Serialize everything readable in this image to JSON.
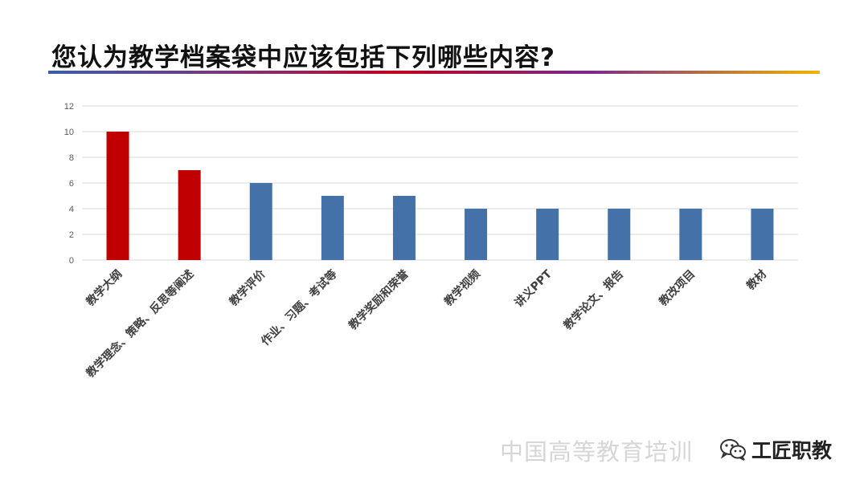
{
  "title": "您认为教学档案袋中应该包括下列哪些内容?",
  "watermark": "中国高等教育培训",
  "brand": {
    "name": "工匠职教",
    "icon": "wechat-icon"
  },
  "colors": {
    "highlight": "#c00000",
    "normal": "#4472a8",
    "grid": "#d9d9d9",
    "axis_text": "#595959",
    "label_text": "#404040"
  },
  "chart_data": {
    "type": "bar",
    "title": "",
    "xlabel": "",
    "ylabel": "",
    "categories": [
      "教学大纲",
      "教学理念、策略、反思等阐述",
      "教学评价",
      "作业、习题、考试等",
      "教学奖励和荣誉",
      "教学视频",
      "讲义PPT",
      "教学论文、报告",
      "教改项目",
      "教材"
    ],
    "values": [
      10,
      7,
      6,
      5,
      5,
      4,
      4,
      4,
      4,
      4
    ],
    "highlighted": [
      true,
      true,
      false,
      false,
      false,
      false,
      false,
      false,
      false,
      false
    ],
    "ylim": [
      0,
      12
    ],
    "yticks": [
      0,
      2,
      4,
      6,
      8,
      10,
      12
    ],
    "grid": true,
    "legend": "none"
  }
}
